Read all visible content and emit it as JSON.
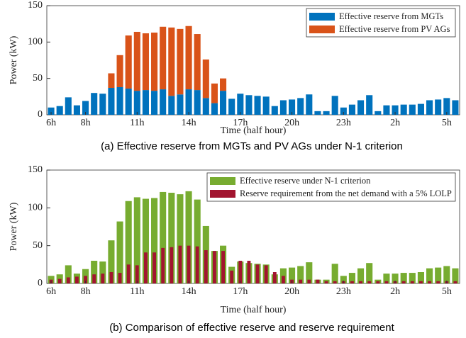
{
  "chart_data": [
    {
      "type": "bar",
      "stacked": true,
      "title": "(a) Effective reserve from MGTs and PV AGs under N-1 criterion",
      "xlabel": "Time (half hour)",
      "ylabel": "Power (kW)",
      "categories": [
        "6h",
        null,
        null,
        null,
        "8h",
        null,
        null,
        null,
        null,
        null,
        "11h",
        null,
        null,
        null,
        null,
        null,
        "14h",
        null,
        null,
        null,
        null,
        null,
        "17h",
        null,
        null,
        null,
        null,
        null,
        "20h",
        null,
        null,
        null,
        null,
        null,
        "23h",
        null,
        null,
        null,
        null,
        null,
        "2h",
        null,
        null,
        null,
        null,
        null,
        "5h",
        null
      ],
      "ylim": [
        0,
        150
      ],
      "yticks": [
        0,
        50,
        100,
        150
      ],
      "legend": "upper right",
      "series": [
        {
          "name": "Effective reserve from MGTs",
          "color": "#0072bd",
          "values": [
            10,
            12,
            24,
            13,
            19,
            30,
            29,
            37,
            38,
            36,
            33,
            34,
            33,
            35,
            26,
            28,
            35,
            34,
            23,
            16,
            33,
            22,
            29,
            27,
            26,
            25,
            12,
            20,
            21,
            23,
            28,
            5,
            5,
            26,
            10,
            14,
            20,
            27,
            5,
            13,
            13,
            14,
            14,
            15,
            20,
            21,
            23,
            20
          ]
        },
        {
          "name": "Effective reserve from PV AGs",
          "color": "#d95319",
          "values": [
            0,
            0,
            0,
            0,
            0,
            0,
            0,
            20,
            44,
            73,
            81,
            78,
            80,
            86,
            94,
            90,
            87,
            77,
            53,
            27,
            17,
            0,
            0,
            0,
            0,
            0,
            0,
            0,
            0,
            0,
            0,
            0,
            0,
            0,
            0,
            0,
            0,
            0,
            0,
            0,
            0,
            0,
            0,
            0,
            0,
            0,
            0,
            0
          ]
        }
      ]
    },
    {
      "type": "bar",
      "stacked": false,
      "title": "(b) Comparison of effective reserve and reserve requirement",
      "xlabel": "Time (half hour)",
      "ylabel": "Power (kW)",
      "categories": [
        "6h",
        null,
        null,
        null,
        "8h",
        null,
        null,
        null,
        null,
        null,
        "11h",
        null,
        null,
        null,
        null,
        null,
        "14h",
        null,
        null,
        null,
        null,
        null,
        "17h",
        null,
        null,
        null,
        null,
        null,
        "20h",
        null,
        null,
        null,
        null,
        null,
        "23h",
        null,
        null,
        null,
        null,
        null,
        "2h",
        null,
        null,
        null,
        null,
        null,
        "5h",
        null
      ],
      "ylim": [
        0,
        150
      ],
      "yticks": [
        0,
        50,
        100,
        150
      ],
      "legend": "upper right",
      "series": [
        {
          "name": "Effective reserve under N-1 criterion",
          "color": "#77ac30",
          "values": [
            10,
            12,
            24,
            13,
            19,
            30,
            29,
            57,
            82,
            109,
            114,
            112,
            113,
            121,
            120,
            118,
            122,
            111,
            76,
            43,
            50,
            22,
            29,
            27,
            26,
            25,
            12,
            20,
            21,
            23,
            28,
            5,
            5,
            26,
            10,
            14,
            20,
            27,
            5,
            13,
            13,
            14,
            14,
            15,
            20,
            21,
            23,
            20
          ]
        },
        {
          "name": "Reserve requirement from the net demand with a 5% LOLP",
          "color": "#a2142f",
          "values": [
            5,
            6,
            8,
            9,
            10,
            12,
            13,
            15,
            14,
            25,
            24,
            41,
            41,
            47,
            48,
            50,
            50,
            49,
            44,
            43,
            43,
            17,
            30,
            30,
            25,
            24,
            15,
            10,
            5,
            5,
            5,
            5,
            3,
            3,
            3,
            3,
            3,
            3,
            3,
            3,
            3,
            3,
            3,
            3,
            3,
            3,
            3,
            3
          ]
        }
      ]
    }
  ]
}
